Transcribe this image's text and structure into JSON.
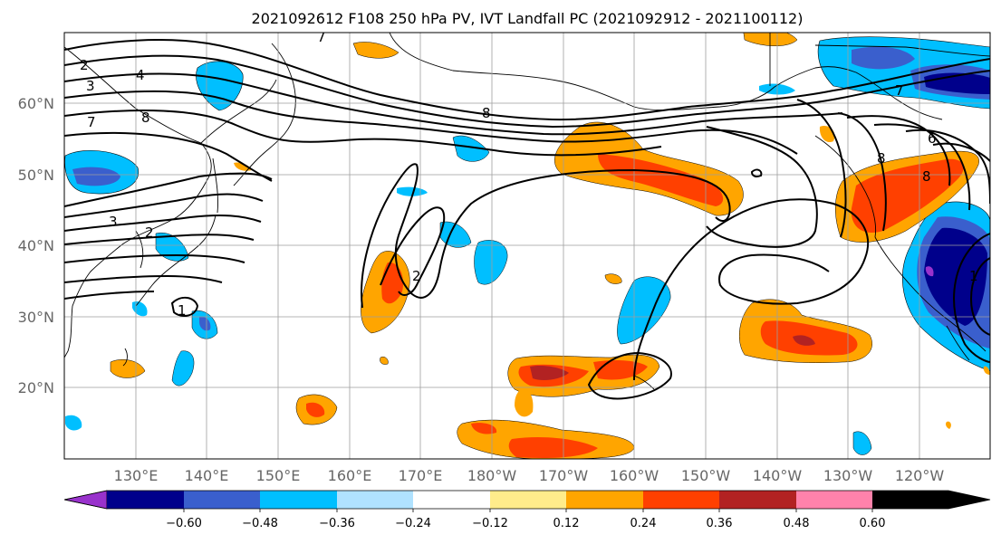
{
  "title": "2021092612 F108 250 hPa PV, IVT Landfall PC (2021092912 - 2021100112)",
  "map": {
    "lat_labels": [
      "60°N",
      "50°N",
      "40°N",
      "30°N",
      "20°N"
    ],
    "lon_labels": [
      "130°E",
      "140°E",
      "150°E",
      "160°E",
      "170°E",
      "180°W",
      "170°W",
      "160°W",
      "150°W",
      "140°W",
      "130°W",
      "120°W"
    ],
    "contour_labels": [
      "2",
      "3",
      "4",
      "7",
      "8",
      "7",
      "8",
      "3",
      "2",
      "2",
      "1",
      "7",
      "8",
      "6",
      "8",
      "1"
    ]
  },
  "colorbar": {
    "ticks": [
      "−0.60",
      "−0.48",
      "−0.36",
      "−0.24",
      "−0.12",
      "0.12",
      "0.24",
      "0.36",
      "0.48",
      "0.60"
    ],
    "colors": [
      "#9932cc",
      "#00008b",
      "#3a5fcd",
      "#00bfff",
      "#b0e2ff",
      "#ffffff",
      "#ffec8b",
      "#ffa500",
      "#ff4000",
      "#b22222",
      "#ff82ab"
    ]
  }
}
